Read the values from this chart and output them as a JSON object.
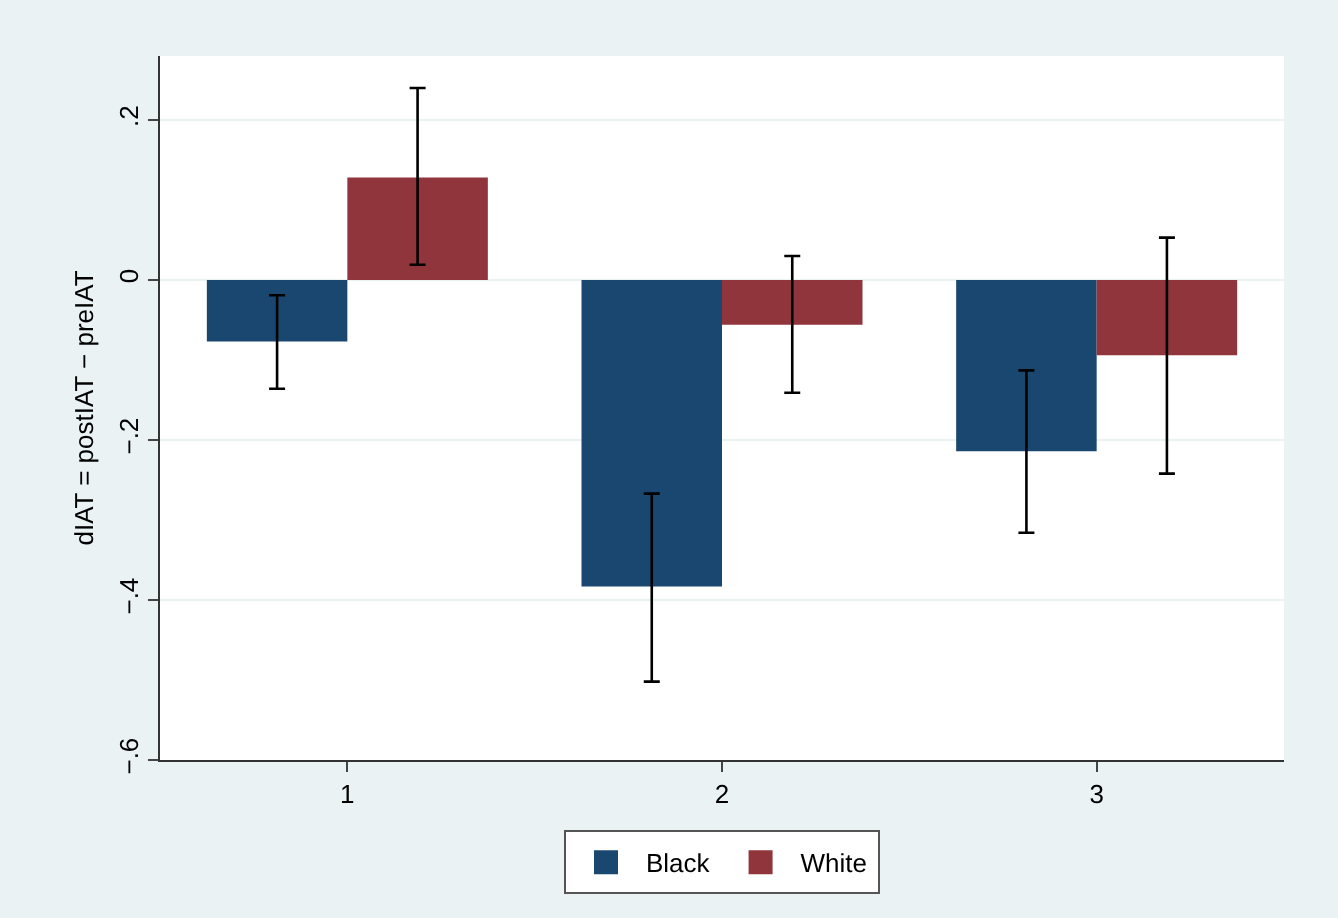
{
  "chart_data": {
    "type": "bar",
    "ylabel": "dIAT = postIAT − preIAT",
    "categories": [
      "1",
      "2",
      "3"
    ],
    "series": [
      {
        "name": "Black",
        "color": "#1a476f",
        "values": [
          -0.077,
          -0.383,
          -0.214
        ],
        "errors": [
          [
            -0.136,
            -0.019
          ],
          [
            -0.502,
            -0.267
          ],
          [
            -0.316,
            -0.113
          ]
        ]
      },
      {
        "name": "White",
        "color": "#90353b",
        "values": [
          0.128,
          -0.056,
          -0.094
        ],
        "errors": [
          [
            0.019,
            0.24
          ],
          [
            -0.141,
            0.03
          ],
          [
            -0.242,
            0.053
          ]
        ]
      }
    ],
    "ylim": [
      -0.6,
      0.28
    ],
    "yticks": [
      {
        "value": -0.6,
        "label": "−.6"
      },
      {
        "value": -0.4,
        "label": "−.4"
      },
      {
        "value": -0.2,
        "label": "−.2"
      },
      0,
      {
        "value": 0.2,
        "label": ".2"
      }
    ],
    "grid": "y",
    "legend": "bottom"
  }
}
